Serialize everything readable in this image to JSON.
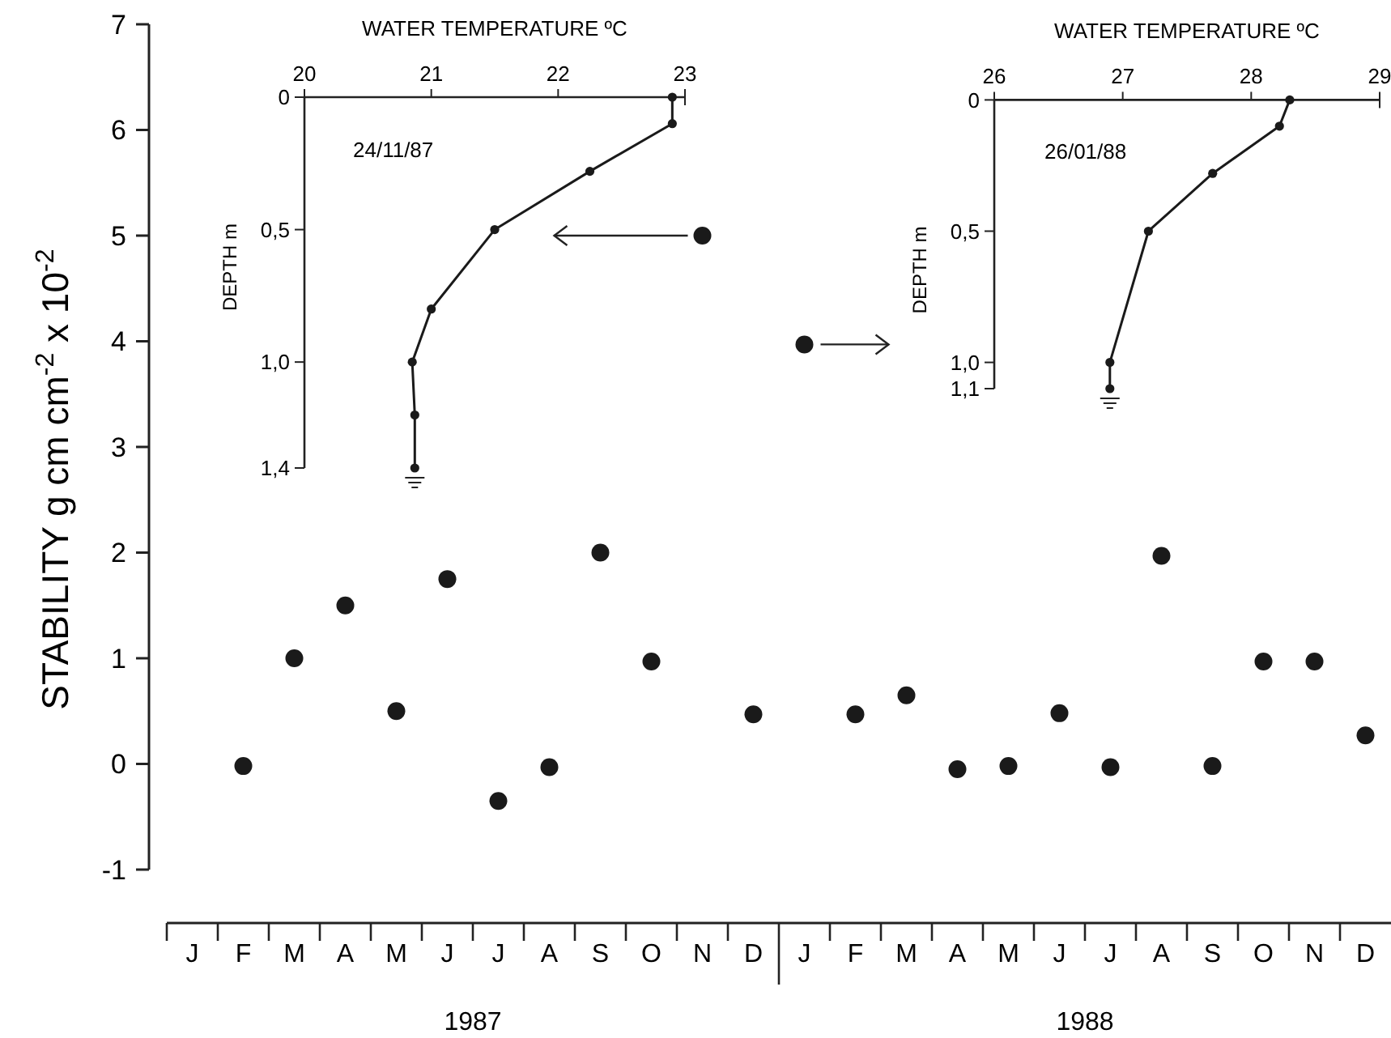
{
  "chart_data": [
    {
      "type": "scatter",
      "ylabel": "STABILITY  g cm cm$^{-2}$ x 10$^{-2}$",
      "categories": [
        "J",
        "F",
        "M",
        "A",
        "M",
        "J",
        "J",
        "A",
        "S",
        "O",
        "N",
        "D",
        "J",
        "F",
        "M",
        "A",
        "M",
        "J",
        "J",
        "A",
        "S",
        "O",
        "N",
        "D"
      ],
      "values": [
        null,
        -0.02,
        1.0,
        1.5,
        0.5,
        1.75,
        -0.35,
        -0.03,
        2.0,
        0.97,
        5.0,
        0.47,
        3.97,
        0.47,
        0.65,
        -0.05,
        -0.02,
        0.48,
        -0.03,
        1.97,
        -0.02,
        0.97,
        0.97,
        0.27
      ],
      "color": "#1a1a1a",
      "marker": "circle",
      "grid": false,
      "ylim": [
        -1,
        7
      ],
      "yticks": [
        -1,
        0,
        1,
        2,
        3,
        4,
        5,
        6,
        7
      ],
      "annotations": [
        "1987",
        "1988"
      ]
    },
    {
      "type": "line",
      "xlabel": "WATER TEMPERATURE  ºC",
      "ylabel": "DEPTH  m",
      "x": [
        22.9,
        22.9,
        22.25,
        21.5,
        21.0,
        20.85,
        20.87,
        20.87
      ],
      "values": [
        0,
        0.1,
        0.28,
        0.5,
        0.8,
        1.0,
        1.2,
        1.4
      ],
      "color": "#1a1a1a",
      "marker": "circle",
      "xlim": [
        20,
        23
      ],
      "xticks": [
        20,
        21,
        22,
        23
      ],
      "ylim": [
        1.4,
        0
      ],
      "yticks": [
        0,
        {
          "value": 0.5,
          "label": "0,5"
        },
        {
          "value": 1.0,
          "label": "1,0"
        },
        {
          "value": 1.4,
          "label": "1,4"
        }
      ],
      "annotations": [
        "24/11/87"
      ]
    },
    {
      "type": "line",
      "xlabel": "WATER TEMPERATURE  ºC",
      "ylabel": "DEPTH  m",
      "x": [
        28.3,
        28.22,
        27.7,
        27.2,
        26.9,
        26.9
      ],
      "values": [
        0,
        0.1,
        0.28,
        0.5,
        1.0,
        1.1
      ],
      "color": "#1a1a1a",
      "marker": "circle",
      "xlim": [
        26,
        29
      ],
      "xticks": [
        26,
        27,
        28,
        29
      ],
      "ylim": [
        1.1,
        0
      ],
      "yticks": [
        0,
        {
          "value": 0.5,
          "label": "0,5"
        },
        {
          "value": 1.0,
          "label": "1,0"
        },
        {
          "value": 1.1,
          "label": "1,1"
        }
      ],
      "annotations": [
        "26/01/88"
      ]
    }
  ]
}
